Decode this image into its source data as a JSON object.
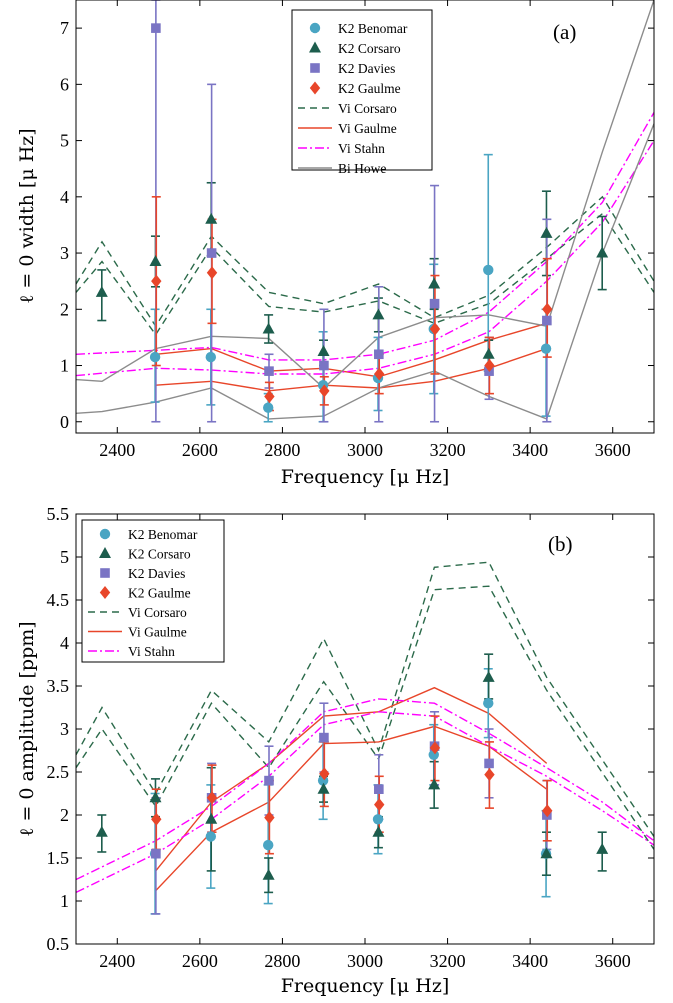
{
  "colors": {
    "benomar": "#4aa5c3",
    "corsaro": "#1d5d4d",
    "davies": "#7a74c4",
    "gaulme": "#e8462a",
    "vi_corsaro": "#2b6a4a",
    "vi_gaulme": "#e8462a",
    "vi_stahn": "#ff00ff",
    "bi_howe": "#8c8c8c"
  },
  "chart_data": [
    {
      "type": "scatter",
      "panel_label": "(a)",
      "xlabel": "Frequency [μ Hz]",
      "ylabel": "ℓ = 0 width [μ Hz]",
      "xlim": [
        2300,
        3700
      ],
      "ylim": [
        -0.2,
        7.5
      ],
      "xticks": [
        "2400",
        "2600",
        "2800",
        "3000",
        "3200",
        "3400",
        "3600"
      ],
      "yticks": [
        "0",
        "1",
        "2",
        "3",
        "4",
        "5",
        "6",
        "7"
      ],
      "series": [
        {
          "name": "K2 Benomar",
          "kind": "marker",
          "marker": "circle",
          "color_key": "benomar",
          "x": [
            2493,
            2628,
            2767,
            2900,
            3033,
            3168,
            3300,
            3440
          ],
          "y": [
            1.15,
            1.15,
            0.25,
            0.65,
            0.78,
            1.65,
            2.7,
            1.3
          ],
          "lo": [
            0.35,
            0.3,
            0.0,
            0.0,
            0.2,
            0.5,
            0.9,
            0.1
          ],
          "hi": [
            2.0,
            2.0,
            0.5,
            1.6,
            1.5,
            2.8,
            4.75,
            2.0
          ]
        },
        {
          "name": "K2 Corsaro",
          "kind": "marker",
          "marker": "triangle",
          "color_key": "corsaro",
          "x": [
            2363,
            2493,
            2628,
            2767,
            2900,
            3033,
            3168,
            3300,
            3440,
            3575
          ],
          "y": [
            2.3,
            2.85,
            3.6,
            1.65,
            1.25,
            1.9,
            2.45,
            1.2,
            3.35,
            3.0
          ],
          "lo": [
            1.8,
            2.4,
            2.95,
            1.4,
            1.0,
            1.6,
            2.0,
            0.95,
            2.6,
            2.35
          ],
          "hi": [
            2.7,
            3.3,
            4.25,
            1.9,
            1.45,
            2.2,
            2.9,
            1.45,
            4.1,
            3.65
          ]
        },
        {
          "name": "K2 Davies",
          "kind": "marker",
          "marker": "square",
          "color_key": "davies",
          "x": [
            2493,
            2628,
            2767,
            2900,
            3033,
            3168,
            3300,
            3440
          ],
          "y": [
            7.0,
            3.0,
            0.9,
            1.0,
            1.2,
            2.1,
            0.9,
            1.8
          ],
          "lo": [
            0.0,
            0.0,
            0.6,
            0.0,
            0.0,
            0.0,
            0.4,
            0.0
          ],
          "hi": [
            7.5,
            6.0,
            1.2,
            2.0,
            2.4,
            4.2,
            1.5,
            3.6
          ]
        },
        {
          "name": "K2 Gaulme",
          "kind": "marker",
          "marker": "diamond",
          "color_key": "gaulme",
          "x": [
            2493,
            2628,
            2767,
            2900,
            3033,
            3168,
            3300,
            3440
          ],
          "y": [
            2.5,
            2.65,
            0.45,
            0.55,
            0.85,
            1.65,
            1.0,
            2.0
          ],
          "lo": [
            1.0,
            1.75,
            0.2,
            0.3,
            0.5,
            0.85,
            0.5,
            1.15
          ],
          "hi": [
            4.0,
            3.6,
            0.7,
            0.8,
            1.2,
            2.6,
            1.5,
            2.9
          ]
        },
        {
          "name": "Vi Corsaro",
          "kind": "line",
          "dash": "7,5",
          "color_key": "vi_corsaro",
          "bands": [
            {
              "x": [
                2300,
                2363,
                2493,
                2628,
                2767,
                2900,
                3033,
                3168,
                3300,
                3440,
                3575,
                3700
              ],
              "y": [
                2.45,
                3.2,
                1.7,
                3.3,
                2.3,
                2.1,
                2.45,
                1.85,
                2.25,
                3.1,
                4.0,
                2.5
              ]
            },
            {
              "x": [
                2300,
                2363,
                2493,
                2628,
                2767,
                2900,
                3033,
                3168,
                3300,
                3440,
                3575,
                3700
              ],
              "y": [
                2.3,
                2.85,
                1.55,
                3.1,
                2.05,
                1.95,
                2.15,
                1.75,
                2.1,
                2.9,
                3.7,
                2.3
              ]
            }
          ]
        },
        {
          "name": "Vi Gaulme",
          "kind": "line",
          "dash": "",
          "color_key": "vi_gaulme",
          "bands": [
            {
              "x": [
                2493,
                2628,
                2767,
                2900,
                3033,
                3168,
                3300,
                3440
              ],
              "y": [
                1.2,
                1.3,
                0.9,
                0.95,
                0.8,
                1.1,
                1.45,
                1.75
              ]
            },
            {
              "x": [
                2493,
                2628,
                2767,
                2900,
                3033,
                3168,
                3300,
                3440
              ],
              "y": [
                0.65,
                0.72,
                0.55,
                0.65,
                0.6,
                0.72,
                0.95,
                1.3
              ]
            }
          ]
        },
        {
          "name": "Vi Stahn",
          "kind": "line",
          "dash": "9,3,2,3",
          "color_key": "vi_stahn",
          "bands": [
            {
              "x": [
                2300,
                2493,
                2628,
                2767,
                2900,
                3033,
                3168,
                3300,
                3440,
                3575,
                3700
              ],
              "y": [
                1.2,
                1.27,
                1.32,
                1.1,
                1.1,
                1.2,
                1.45,
                1.95,
                2.85,
                3.9,
                5.5
              ]
            },
            {
              "x": [
                2300,
                2493,
                2628,
                2767,
                2900,
                3033,
                3168,
                3300,
                3440,
                3575,
                3700
              ],
              "y": [
                0.82,
                0.95,
                0.92,
                0.85,
                0.85,
                0.95,
                1.2,
                1.6,
                2.5,
                3.55,
                5.0
              ]
            }
          ]
        },
        {
          "name": "Bi Howe",
          "kind": "line",
          "dash": "",
          "color_key": "bi_howe",
          "bands": [
            {
              "x": [
                2300,
                2363,
                2493,
                2628,
                2767,
                2900,
                3033,
                3168,
                3300,
                3440,
                3575,
                3700
              ],
              "y": [
                0.75,
                0.72,
                1.3,
                1.52,
                1.48,
                0.6,
                1.5,
                1.85,
                1.9,
                1.7,
                4.8,
                7.5
              ]
            },
            {
              "x": [
                2300,
                2363,
                2493,
                2628,
                2767,
                2900,
                3033,
                3168,
                3300,
                3440,
                3575,
                3700
              ],
              "y": [
                0.15,
                0.18,
                0.35,
                0.6,
                0.05,
                0.1,
                0.6,
                0.9,
                0.45,
                0.05,
                3.0,
                5.3
              ]
            }
          ]
        }
      ]
    },
    {
      "type": "scatter",
      "panel_label": "(b)",
      "xlabel": "Frequency [μ Hz]",
      "ylabel": "ℓ = 0 amplitude [ppm]",
      "xlim": [
        2300,
        3700
      ],
      "ylim": [
        0.5,
        5.5
      ],
      "xticks": [
        "2400",
        "2600",
        "2800",
        "3000",
        "3200",
        "3400",
        "3600"
      ],
      "yticks": [
        "0.5",
        "1",
        "1.5",
        "2",
        "2.5",
        "3",
        "3.5",
        "4",
        "4.5",
        "5",
        "5.5"
      ],
      "series": [
        {
          "name": "K2 Benomar",
          "kind": "marker",
          "marker": "circle",
          "color_key": "benomar",
          "x": [
            2493,
            2628,
            2767,
            2900,
            3033,
            3168,
            3300,
            3440
          ],
          "y": [
            1.55,
            1.75,
            1.65,
            2.4,
            1.95,
            2.7,
            3.3,
            1.55
          ],
          "lo": [
            0.85,
            1.15,
            0.97,
            1.95,
            1.55,
            2.35,
            2.9,
            1.05
          ],
          "hi": [
            2.25,
            2.35,
            2.35,
            2.85,
            2.35,
            3.05,
            3.7,
            2.05
          ]
        },
        {
          "name": "K2 Corsaro",
          "kind": "marker",
          "marker": "triangle",
          "color_key": "corsaro",
          "x": [
            2363,
            2493,
            2628,
            2767,
            2900,
            3033,
            3168,
            3300,
            3440,
            3575
          ],
          "y": [
            1.8,
            2.2,
            1.95,
            1.3,
            2.3,
            1.8,
            2.35,
            3.6,
            1.55,
            1.6
          ],
          "lo": [
            1.57,
            1.98,
            1.35,
            1.1,
            2.15,
            1.62,
            2.08,
            3.35,
            1.3,
            1.35
          ],
          "hi": [
            2.0,
            2.42,
            2.55,
            1.5,
            2.45,
            1.98,
            2.62,
            3.87,
            1.8,
            1.8
          ]
        },
        {
          "name": "K2 Davies",
          "kind": "marker",
          "marker": "square",
          "color_key": "davies",
          "x": [
            2493,
            2628,
            2767,
            2900,
            3033,
            3168,
            3300,
            3440
          ],
          "y": [
            1.55,
            2.2,
            2.4,
            2.9,
            2.3,
            2.8,
            2.6,
            2.0
          ],
          "lo": [
            0.85,
            1.8,
            2.0,
            2.5,
            1.95,
            2.35,
            2.2,
            1.6
          ],
          "hi": [
            2.2,
            2.6,
            2.8,
            3.3,
            2.7,
            3.2,
            3.0,
            2.4
          ]
        },
        {
          "name": "K2 Gaulme",
          "kind": "marker",
          "marker": "diamond",
          "color_key": "gaulme",
          "x": [
            2493,
            2628,
            2767,
            2900,
            3033,
            3168,
            3300,
            3440
          ],
          "y": [
            1.95,
            2.2,
            1.97,
            2.48,
            2.12,
            2.78,
            2.47,
            2.05
          ],
          "lo": [
            1.6,
            1.8,
            1.55,
            2.1,
            1.8,
            2.4,
            2.08,
            1.7
          ],
          "hi": [
            2.3,
            2.58,
            2.4,
            2.85,
            2.45,
            3.15,
            2.85,
            2.4
          ]
        },
        {
          "name": "Vi Corsaro",
          "kind": "line",
          "dash": "7,5",
          "color_key": "vi_corsaro",
          "bands": [
            {
              "x": [
                2300,
                2363,
                2493,
                2628,
                2767,
                2900,
                3033,
                3168,
                3300,
                3440,
                3700
              ],
              "y": [
                2.7,
                3.25,
                2.25,
                3.45,
                2.85,
                4.05,
                2.75,
                4.88,
                4.94,
                3.6,
                1.75
              ]
            },
            {
              "x": [
                2300,
                2363,
                2493,
                2628,
                2767,
                2900,
                3033,
                3168,
                3300,
                3440,
                3700
              ],
              "y": [
                2.55,
                3.0,
                2.1,
                3.3,
                2.55,
                3.55,
                2.65,
                4.62,
                4.66,
                3.45,
                1.6
              ]
            }
          ]
        },
        {
          "name": "Vi Gaulme",
          "kind": "line",
          "dash": "",
          "color_key": "vi_gaulme",
          "bands": [
            {
              "x": [
                2493,
                2628,
                2767,
                2900,
                3033,
                3168,
                3300,
                3440
              ],
              "y": [
                1.35,
                2.15,
                2.6,
                3.15,
                3.2,
                3.48,
                3.18,
                2.6
              ]
            },
            {
              "x": [
                2493,
                2628,
                2767,
                2900,
                3033,
                3168,
                3300,
                3440
              ],
              "y": [
                1.12,
                1.8,
                2.15,
                2.83,
                2.85,
                3.03,
                2.8,
                2.3
              ]
            }
          ]
        },
        {
          "name": "Vi Stahn",
          "kind": "line",
          "dash": "9,3,2,3",
          "color_key": "vi_stahn",
          "bands": [
            {
              "x": [
                2300,
                2493,
                2628,
                2767,
                2900,
                3033,
                3168,
                3300,
                3440,
                3575,
                3700
              ],
              "y": [
                1.25,
                1.7,
                2.1,
                2.6,
                3.2,
                3.35,
                3.3,
                2.95,
                2.55,
                2.15,
                1.7
              ]
            },
            {
              "x": [
                2300,
                2493,
                2628,
                2767,
                2900,
                3033,
                3168,
                3300,
                3440,
                3575,
                3700
              ],
              "y": [
                1.1,
                1.55,
                1.95,
                2.45,
                3.05,
                3.2,
                3.15,
                2.8,
                2.45,
                2.05,
                1.65
              ]
            }
          ]
        }
      ]
    }
  ]
}
